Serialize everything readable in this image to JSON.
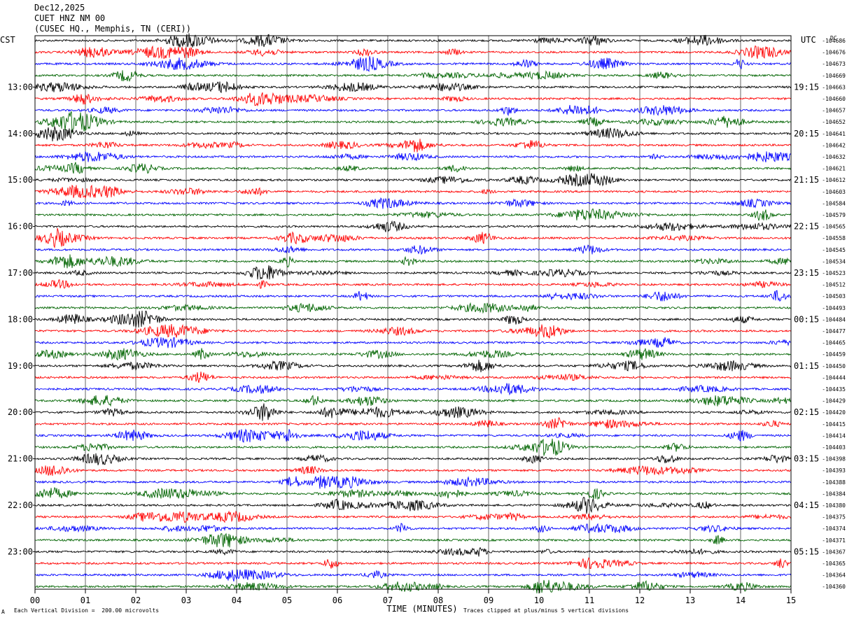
{
  "header": {
    "date": "Dec12,2025",
    "station": "CUET HNZ NM 00",
    "location": "(CUSEC HQ., Memphis, TN (CERI))"
  },
  "left_timezone": "CST",
  "right_timezone": "UTC",
  "dc_header": "DC",
  "footer": {
    "scale_note": "Each Vertical Division =  200.00 microvolts",
    "clip_note": "Traces clipped at plus/minus 5 vertical divisions",
    "corner_mark": "A"
  },
  "chart_data": {
    "type": "line",
    "title": "CUET HNZ NM 00",
    "xlabel": "TIME (MINUTES)",
    "ylabel": "",
    "xlim": [
      0,
      15
    ],
    "x_ticks": [
      "00",
      "01",
      "02",
      "03",
      "04",
      "05",
      "06",
      "07",
      "08",
      "09",
      "10",
      "11",
      "12",
      "13",
      "14",
      "15"
    ],
    "rows_per_hour": 4,
    "minutes_per_row": 15,
    "trace_colors": [
      "#000000",
      "#ff0000",
      "#0000ff",
      "#006400"
    ],
    "left_hour_labels": [
      "13:00",
      "14:00",
      "15:00",
      "16:00",
      "17:00",
      "18:00",
      "19:00",
      "20:00",
      "21:00",
      "22:00",
      "23:00"
    ],
    "right_hour_labels": [
      "19:15",
      "20:15",
      "21:15",
      "22:15",
      "23:15",
      "00:15",
      "01:15",
      "02:15",
      "03:15",
      "04:15",
      "05:15"
    ],
    "dc_offsets": [
      "-104686",
      "-104676",
      "-104673",
      "-104669",
      "-104663",
      "-104660",
      "-104657",
      "-104652",
      "-104641",
      "-104642",
      "-104632",
      "-104621",
      "-104612",
      "-104603",
      "-104584",
      "-104579",
      "-104565",
      "-104558",
      "-104545",
      "-104534",
      "-104523",
      "-104512",
      "-104503",
      "-104493",
      "-104484",
      "-104477",
      "-104465",
      "-104459",
      "-104450",
      "-104444",
      "-104435",
      "-104429",
      "-104420",
      "-104415",
      "-104414",
      "-104403",
      "-104398",
      "-104393",
      "-104388",
      "-104384",
      "-104380",
      "-104375",
      "-104374",
      "-104371",
      "-104367",
      "-104365",
      "-104364",
      "-104360"
    ],
    "row_count": 48
  }
}
